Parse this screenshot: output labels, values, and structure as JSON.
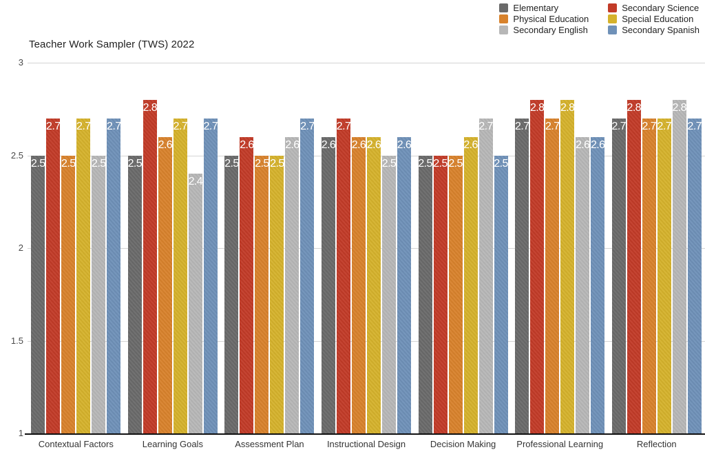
{
  "page": {
    "background": "#ffffff"
  },
  "title": "Teacher Work Sampler (TWS) 2022",
  "legend": {
    "position": "top-right",
    "columns": [
      [
        "Elementary",
        "Physical Education",
        "Secondary English"
      ],
      [
        "Secondary Science",
        "Special Education",
        "Secondary Spanish"
      ]
    ]
  },
  "chart_data": {
    "type": "bar",
    "title": "Teacher Work Sampler (TWS) 2022",
    "categories": [
      "Contextual Factors",
      "Learning Goals",
      "Assessment Plan",
      "Instructional Design",
      "Decision Making",
      "Professional Learning",
      "Reflection"
    ],
    "series": [
      {
        "name": "Elementary",
        "color": "#6a6a6a",
        "values": [
          2.5,
          2.5,
          2.5,
          2.6,
          2.5,
          2.7,
          2.7
        ]
      },
      {
        "name": "Secondary Science",
        "color": "#c23b28",
        "values": [
          2.7,
          2.8,
          2.6,
          2.7,
          2.5,
          2.8,
          2.8
        ]
      },
      {
        "name": "Physical Education",
        "color": "#d8822c",
        "values": [
          2.5,
          2.6,
          2.5,
          2.6,
          2.5,
          2.7,
          2.7
        ]
      },
      {
        "name": "Special Education",
        "color": "#d5b22c",
        "values": [
          2.7,
          2.7,
          2.5,
          2.6,
          2.6,
          2.8,
          2.7
        ]
      },
      {
        "name": "Secondary English",
        "color": "#b7b7b7",
        "values": [
          2.5,
          2.4,
          2.6,
          2.5,
          2.7,
          2.6,
          2.8
        ]
      },
      {
        "name": "Secondary Spanish",
        "color": "#6f91b8",
        "values": [
          2.7,
          2.7,
          2.7,
          2.6,
          2.5,
          2.6,
          2.7
        ]
      }
    ],
    "ylim": [
      1,
      3
    ],
    "ytick_values": [
      3,
      2.5,
      2,
      1.5,
      1
    ],
    "grid": true,
    "legend_position": "top-right",
    "value_labels": true,
    "value_label_color": "#ffffff",
    "grid_color": "#d4d4d4",
    "axis_color": "#101010"
  }
}
